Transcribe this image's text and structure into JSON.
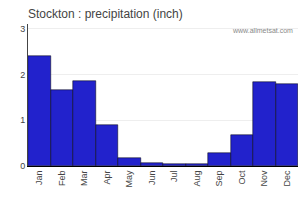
{
  "chart_data": {
    "type": "bar",
    "title": "Stockton : precipitation (inch)",
    "categories": [
      "Jan",
      "Feb",
      "Mar",
      "Apr",
      "May",
      "Jun",
      "Jul",
      "Aug",
      "Sep",
      "Oct",
      "Nov",
      "Dec"
    ],
    "values": [
      2.4,
      1.65,
      1.85,
      0.9,
      0.18,
      0.07,
      0.04,
      0.05,
      0.28,
      0.68,
      1.83,
      1.78
    ],
    "color": "#2222cc",
    "ylim": [
      0,
      3.1
    ],
    "yticks": [
      0,
      1,
      2,
      3
    ],
    "grid": true,
    "annotations": [
      "www.allmetsat.com"
    ]
  }
}
